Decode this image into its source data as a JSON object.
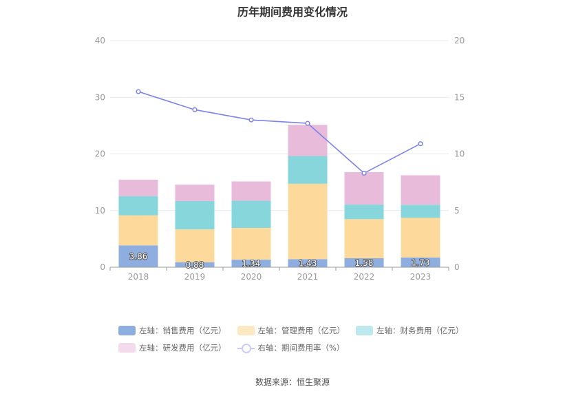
{
  "chart_data": {
    "type": "bar",
    "title": "历年期间费用变化情况",
    "categories": [
      "2018",
      "2019",
      "2020",
      "2021",
      "2022",
      "2023"
    ],
    "stacked": true,
    "y_left": {
      "min": 0,
      "max": 40,
      "ticks": [
        0,
        10,
        20,
        30,
        40
      ]
    },
    "y_right": {
      "min": 0,
      "max": 20,
      "ticks": [
        0,
        5,
        10,
        15,
        20
      ]
    },
    "series": [
      {
        "name": "左轴：销售费用（亿元）",
        "axis": "left",
        "color": "#8eaee0",
        "values": [
          3.86,
          0.88,
          1.34,
          1.43,
          1.58,
          1.73
        ],
        "labels": [
          "3.86",
          "0.88",
          "1.34",
          "1.43",
          "1.58",
          "1.73"
        ]
      },
      {
        "name": "左轴：管理费用（亿元）",
        "axis": "left",
        "color": "#fed99c",
        "values": [
          5.3,
          5.8,
          5.6,
          13.3,
          6.9,
          7.0
        ]
      },
      {
        "name": "左轴：财务费用（亿元）",
        "axis": "left",
        "color": "#87d6dc",
        "values": [
          3.4,
          5.0,
          4.8,
          4.9,
          2.6,
          2.3
        ]
      },
      {
        "name": "左轴：研发费用（亿元）",
        "axis": "left",
        "color": "#e8bbdb",
        "values": [
          2.9,
          2.9,
          3.4,
          5.5,
          5.7,
          5.2
        ]
      }
    ],
    "line_series": {
      "name": "右轴：期间费用率（%）",
      "axis": "right",
      "color": "#7b82e8",
      "values": [
        15.5,
        13.9,
        13.0,
        12.7,
        8.3,
        10.9
      ]
    },
    "grid": true,
    "legend_position": "bottom"
  },
  "source_text": "数据来源：恒生聚源"
}
